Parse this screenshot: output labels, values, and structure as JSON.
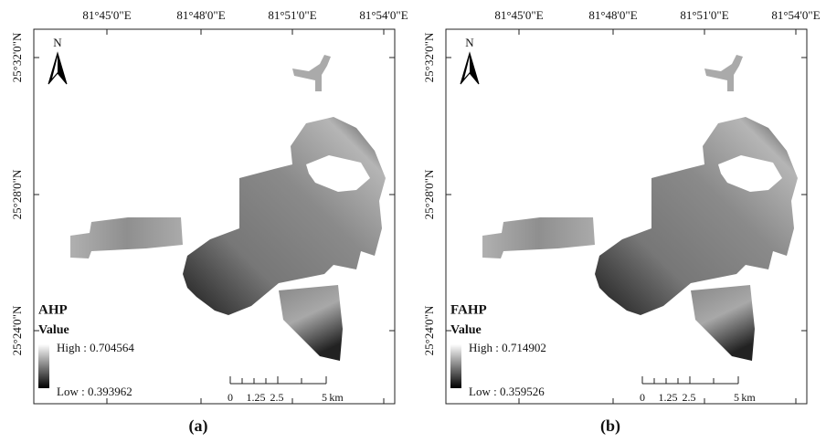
{
  "panels": [
    {
      "caption": "(a)",
      "method": "AHP",
      "north": "N",
      "legend_title": "Value",
      "high": "High : 0.704564",
      "low": "Low : 0.393962",
      "x_labels": [
        "81°45'0\"E",
        "81°48'0\"E",
        "81°51'0\"E",
        "81°54'0\"E"
      ],
      "y_labels": [
        "25°32'0\"N",
        "25°28'0\"N",
        "25°24'0\"N"
      ],
      "scale_labels": [
        "0",
        "1.25",
        "2.5",
        "5",
        "km"
      ]
    },
    {
      "caption": "(b)",
      "method": "FAHP",
      "north": "N",
      "legend_title": "Value",
      "high": "High : 0.714902",
      "low": "Low : 0.359526",
      "x_labels": [
        "81°45'0\"E",
        "81°48'0\"E",
        "81°51'0\"E",
        "81°54'0\"E"
      ],
      "y_labels": [
        "25°32'0\"N",
        "25°28'0\"N",
        "25°24'0\"N"
      ],
      "scale_labels": [
        "0",
        "1.25",
        "2.5",
        "5",
        "km"
      ]
    }
  ]
}
